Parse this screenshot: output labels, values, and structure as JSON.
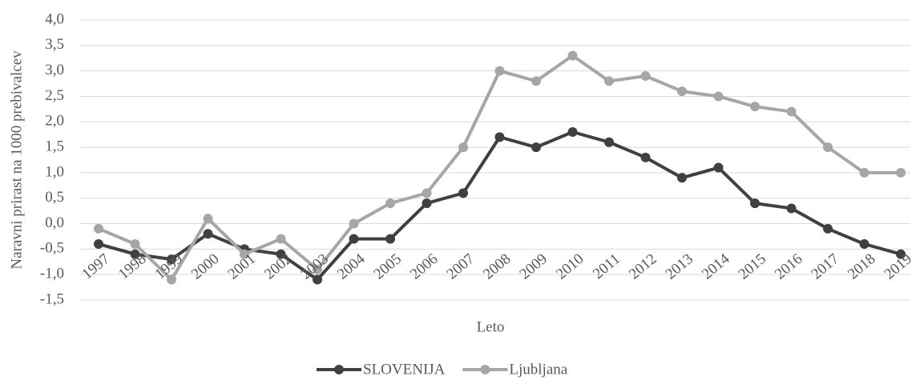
{
  "chart_data": {
    "type": "line",
    "x_label": "Leto",
    "y_label": "Naravni prirast na 1000 prebivalcev",
    "categories": [
      "1997",
      "1998",
      "1999",
      "2000",
      "2001",
      "2002",
      "2003",
      "2004",
      "2005",
      "2006",
      "2007",
      "2008",
      "2009",
      "2010",
      "2011",
      "2012",
      "2013",
      "2014",
      "2015",
      "2016",
      "2017",
      "2018",
      "2019"
    ],
    "series": [
      {
        "name": "SLOVENIJA",
        "color": "#404040",
        "values": [
          -0.4,
          -0.6,
          -0.7,
          -0.2,
          -0.5,
          -0.6,
          -1.1,
          -0.3,
          -0.3,
          0.4,
          0.6,
          1.7,
          1.5,
          1.8,
          1.6,
          1.3,
          0.9,
          1.1,
          0.4,
          0.3,
          -0.1,
          -0.4,
          -0.6
        ]
      },
      {
        "name": "Ljubljana",
        "color": "#a6a6a6",
        "values": [
          -0.1,
          -0.4,
          -1.1,
          0.1,
          -0.6,
          -0.3,
          -0.9,
          0.0,
          0.4,
          0.6,
          1.5,
          3.0,
          2.8,
          3.3,
          2.8,
          2.9,
          2.6,
          2.5,
          2.3,
          2.2,
          1.5,
          1.0,
          1.0
        ]
      }
    ],
    "ylim": [
      -1.5,
      4.0
    ],
    "yticks": [
      {
        "value": -1.5,
        "label": "-1,5"
      },
      {
        "value": -1.0,
        "label": "-1,0"
      },
      {
        "value": -0.5,
        "label": "-0,5"
      },
      {
        "value": 0.0,
        "label": "0,0"
      },
      {
        "value": 0.5,
        "label": "0,5"
      },
      {
        "value": 1.0,
        "label": "1,0"
      },
      {
        "value": 1.5,
        "label": "1,5"
      },
      {
        "value": 2.0,
        "label": "2,0"
      },
      {
        "value": 2.5,
        "label": "2,5"
      },
      {
        "value": 3.0,
        "label": "3,0"
      },
      {
        "value": 3.5,
        "label": "3,5"
      },
      {
        "value": 4.0,
        "label": "4,0"
      }
    ],
    "grid": true,
    "legend": "bottom"
  }
}
